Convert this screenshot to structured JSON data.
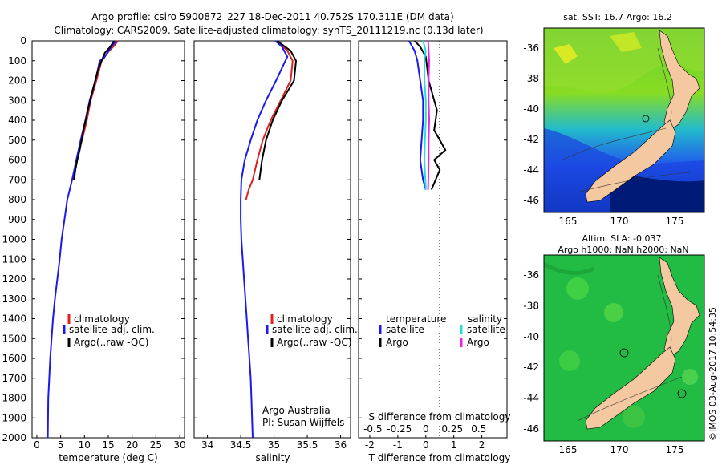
{
  "header": {
    "line1": "Argo profile: csiro 5900872_227 18-Dec-2011 40.752S 170.311E (DM data)",
    "line2": "Climatology: CARS2009. Satellite-adjusted climatology: synTS_20111219.nc (0.13d later)"
  },
  "depth_ticks": [
    "0",
    "100",
    "200",
    "300",
    "400",
    "500",
    "600",
    "700",
    "800",
    "900",
    "1000",
    "1100",
    "1200",
    "1300",
    "1400",
    "1500",
    "1600",
    "1700",
    "1800",
    "1900",
    "2000"
  ],
  "legend": {
    "climatology": "climatology",
    "satellite": "satellite-adj. clim.",
    "argo": "Argo(..raw -QC)"
  },
  "diff_legend": {
    "temperature": "temperature",
    "salinity": "salinity",
    "satellite": "satellite",
    "argo": "Argo"
  },
  "credit": {
    "line1": "Argo Australia",
    "line2": "PI: Susan Wijffels"
  },
  "map1": {
    "title": "sat. SST: 16.7  Argo: 16.2",
    "yticks": [
      "-36",
      "-38",
      "-40",
      "-42",
      "-44",
      "-46"
    ],
    "xticks": [
      "165",
      "170",
      "175"
    ]
  },
  "map2": {
    "title1": "Altim. SLA: -0.037",
    "title2": "Argo h1000: NaN h2000: NaN",
    "yticks": [
      "-36",
      "-38",
      "-40",
      "-42",
      "-44",
      "-46"
    ],
    "xticks": [
      "165",
      "170",
      "175"
    ]
  },
  "stamp": "©IMOS 03-Aug-2017 10:54:35",
  "colors": {
    "climatology": "#dd2222",
    "satellite": "#1a1aee",
    "argo": "#000000",
    "sal_satellite": "#22dddd",
    "sal_argo": "#ee22ee",
    "land": "#f4c8a0",
    "sla_green": "#22bb44"
  },
  "chart_data": [
    {
      "type": "line",
      "title": "",
      "xlabel": "temperature (deg C)",
      "ylabel": "",
      "xlim": [
        -1,
        31
      ],
      "ylim": [
        2000,
        0
      ],
      "x_ticks": [
        "0",
        "5",
        "10",
        "15",
        "20",
        "25",
        "30"
      ],
      "series": [
        {
          "name": "climatology",
          "color": "#dd2222",
          "x": [
            17.0,
            16.4,
            15.2,
            14.2,
            13.6,
            12.5,
            11.3,
            10.5,
            9.5,
            8.8,
            8.3,
            7.6
          ],
          "y": [
            0,
            20,
            50,
            80,
            100,
            200,
            300,
            400,
            500,
            550,
            600,
            700
          ]
        },
        {
          "name": "satellite-adj. clim.",
          "color": "#1a1aee",
          "x": [
            16.7,
            15.6,
            14.8,
            14.0,
            13.2,
            12.3,
            11.1,
            10.2,
            9.2,
            8.3,
            7.4,
            6.4,
            5.8,
            5.2,
            4.8,
            4.3,
            3.8,
            3.4,
            3.1,
            2.8,
            2.6,
            2.4,
            2.3
          ],
          "y": [
            0,
            30,
            60,
            90,
            100,
            200,
            300,
            400,
            500,
            600,
            700,
            800,
            900,
            1000,
            1100,
            1200,
            1300,
            1400,
            1500,
            1600,
            1700,
            1800,
            2000
          ]
        },
        {
          "name": "Argo(..raw -QC)",
          "color": "#000000",
          "x": [
            16.2,
            15.4,
            14.3,
            13.6,
            12.8,
            11.7,
            10.7,
            9.8,
            9.0,
            8.5,
            8.1,
            7.8
          ],
          "y": [
            0,
            30,
            60,
            100,
            150,
            250,
            350,
            450,
            550,
            600,
            650,
            700
          ]
        }
      ]
    },
    {
      "type": "line",
      "title": "",
      "xlabel": "salinity",
      "ylabel": "",
      "xlim": [
        33.8,
        36.15
      ],
      "ylim": [
        2000,
        0
      ],
      "x_ticks": [
        "34",
        "34.5",
        "35",
        "35.5",
        "36"
      ],
      "series": [
        {
          "name": "climatology",
          "color": "#dd2222",
          "x": [
            35.05,
            35.2,
            35.28,
            35.25,
            35.1,
            34.95,
            34.83,
            34.75,
            34.68,
            34.62,
            34.58
          ],
          "y": [
            0,
            50,
            100,
            200,
            300,
            400,
            500,
            600,
            700,
            750,
            800
          ]
        },
        {
          "name": "satellite-adj. clim.",
          "color": "#1a1aee",
          "x": [
            35.02,
            35.12,
            35.2,
            35.17,
            35.03,
            34.88,
            34.75,
            34.65,
            34.56,
            34.51,
            34.5,
            34.5,
            34.51,
            34.53,
            34.55,
            34.57,
            34.59,
            34.61,
            34.63,
            34.65,
            34.66,
            34.67,
            34.68
          ],
          "y": [
            0,
            30,
            80,
            100,
            200,
            300,
            400,
            500,
            600,
            700,
            800,
            900,
            1000,
            1100,
            1200,
            1300,
            1400,
            1500,
            1600,
            1700,
            1800,
            1900,
            2000
          ]
        },
        {
          "name": "Argo(..raw -QC)",
          "color": "#000000",
          "x": [
            35.05,
            35.25,
            35.33,
            35.3,
            35.12,
            34.98,
            34.88,
            34.82,
            34.78
          ],
          "y": [
            0,
            50,
            100,
            200,
            300,
            400,
            500,
            600,
            700
          ]
        }
      ]
    },
    {
      "type": "line",
      "title": "",
      "xlabel": "T difference from climatology",
      "xlabel_top": "S difference from climatology",
      "ylabel": "",
      "xlim": [
        -2.4,
        2.9
      ],
      "ylim": [
        2000,
        0
      ],
      "x_ticks": [
        "-2",
        "-1",
        "0",
        "1",
        "2"
      ],
      "x_ticks_top": [
        "-0.5",
        "-0.25",
        "0",
        "0.25",
        "0.5"
      ],
      "series": [
        {
          "name": "temperature satellite",
          "color": "#1a1aee",
          "x": [
            -0.6,
            -0.4,
            -0.3,
            -0.2,
            -0.1,
            -0.1,
            -0.2,
            -0.1,
            0.0
          ],
          "y": [
            0,
            50,
            100,
            200,
            300,
            400,
            600,
            700,
            750
          ]
        },
        {
          "name": "temperature Argo",
          "color": "#000000",
          "x": [
            -0.4,
            -0.2,
            0.0,
            0.1,
            0.4,
            0.3,
            0.7,
            0.3,
            0.5,
            0.2
          ],
          "y": [
            0,
            30,
            80,
            200,
            350,
            450,
            550,
            600,
            650,
            750
          ]
        },
        {
          "name": "salinity satellite",
          "color": "#22dddd",
          "x": [
            -0.1,
            0.0,
            -0.05,
            -0.05,
            0.0,
            0.0,
            -0.03,
            -0.05,
            0.0
          ],
          "y": [
            0,
            50,
            100,
            200,
            300,
            400,
            500,
            600,
            750
          ]
        },
        {
          "name": "salinity Argo",
          "color": "#ee22ee",
          "x": [
            0.08,
            0.1,
            0.12,
            0.1,
            0.1,
            0.12,
            0.1,
            0.1,
            0.08
          ],
          "y": [
            0,
            50,
            100,
            200,
            300,
            400,
            500,
            600,
            750
          ]
        }
      ]
    }
  ]
}
